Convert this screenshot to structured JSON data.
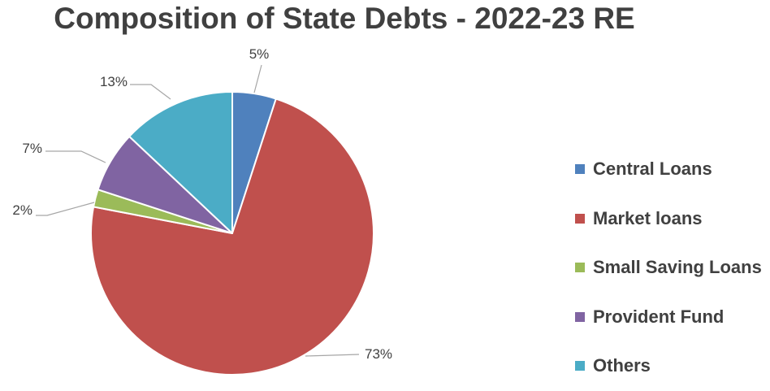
{
  "chart_data": {
    "type": "pie",
    "title": "Composition of State Debts - 2022-23 RE",
    "legend_position": "right",
    "slices": [
      {
        "name": "Central Loans",
        "value": 5,
        "label": "5%",
        "color": "#4f81bd"
      },
      {
        "name": "Market loans",
        "value": 73,
        "label": "73%",
        "color": "#c0504d"
      },
      {
        "name": "Small Saving Loans",
        "value": 2,
        "label": "2%",
        "color": "#9bbb59"
      },
      {
        "name": "Provident Fund",
        "value": 7,
        "label": "7%",
        "color": "#8064a2"
      },
      {
        "name": "Others",
        "value": 13,
        "label": "13%",
        "color": "#4bacc6"
      }
    ]
  }
}
